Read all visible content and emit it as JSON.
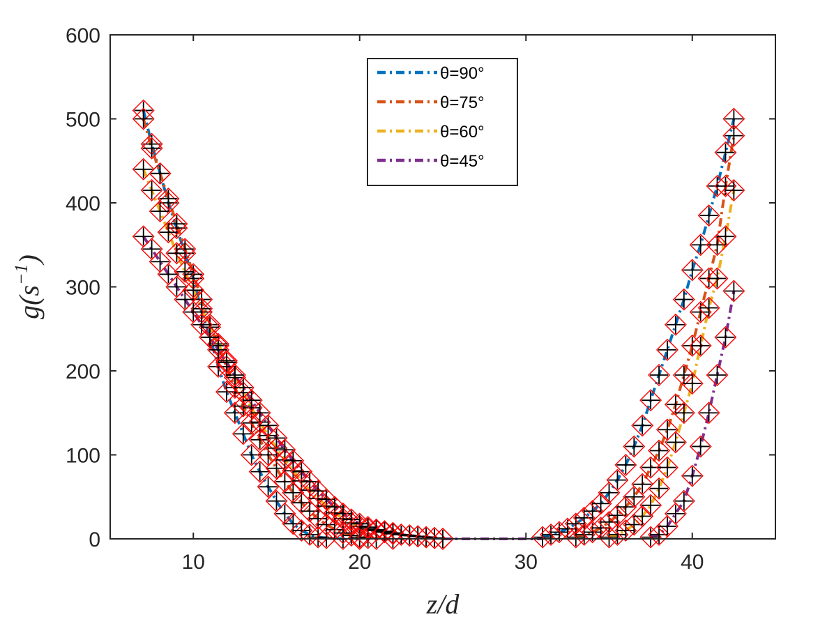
{
  "chart_data": {
    "type": "line",
    "title": "",
    "xlabel": "z/d",
    "ylabel": "g(s⁻¹)",
    "ylabel_parts": {
      "base": "g(s",
      "sup": "−1",
      "close": ")"
    },
    "xlim": [
      5,
      45
    ],
    "ylim": [
      0,
      600
    ],
    "xticks": [
      10,
      20,
      30,
      40
    ],
    "yticks": [
      0,
      100,
      200,
      300,
      400,
      500,
      600
    ],
    "grid": false,
    "legend_position": "top-center",
    "marker_styles": {
      "simulation": "red open diamond",
      "model": "black plus"
    },
    "series": [
      {
        "name": "θ=90°",
        "color": "#0072BD",
        "left": {
          "x": [
            7.0,
            7.5,
            8.0,
            8.5,
            9.0,
            9.5,
            10.0,
            10.5,
            11.0,
            11.5,
            12.0,
            12.5,
            13.0,
            13.5,
            14.0,
            14.5,
            15.0,
            15.5,
            16.0,
            16.5,
            17.0,
            17.5,
            18.0,
            19.0,
            20.0
          ],
          "y": [
            510,
            470,
            435,
            400,
            370,
            340,
            310,
            270,
            240,
            205,
            175,
            150,
            125,
            100,
            80,
            62,
            45,
            30,
            18,
            10,
            5,
            2,
            1,
            0,
            0
          ]
        },
        "right": {
          "x": [
            31.0,
            31.5,
            32.0,
            32.5,
            33.0,
            33.5,
            34.0,
            34.5,
            35.0,
            35.5,
            36.0,
            36.5,
            37.0,
            37.5,
            38.0,
            38.5,
            39.0,
            39.5,
            40.0,
            40.5,
            41.0,
            41.5,
            42.0,
            42.5
          ],
          "y": [
            2,
            5,
            8,
            12,
            18,
            25,
            33,
            42,
            55,
            70,
            88,
            110,
            135,
            165,
            195,
            225,
            255,
            285,
            320,
            350,
            385,
            420,
            460,
            500
          ]
        }
      },
      {
        "name": "θ=75°",
        "color": "#D95319",
        "left": {
          "x": [
            7.0,
            7.5,
            8.0,
            8.5,
            9.0,
            9.5,
            10.0,
            10.5,
            11.0,
            11.5,
            12.0,
            12.5,
            13.0,
            13.5,
            14.0,
            14.5,
            15.0,
            15.5,
            16.0,
            16.5,
            17.0,
            17.5,
            18.0,
            18.5,
            19.0,
            19.5,
            20.0,
            20.5,
            21.0,
            22.0
          ],
          "y": [
            500,
            465,
            435,
            405,
            375,
            345,
            315,
            285,
            255,
            230,
            205,
            180,
            158,
            138,
            118,
            100,
            84,
            68,
            55,
            43,
            33,
            24,
            17,
            11,
            7,
            4,
            2,
            1,
            0,
            0
          ]
        },
        "right": {
          "x": [
            33.0,
            33.5,
            34.0,
            34.5,
            35.0,
            35.5,
            36.0,
            36.5,
            37.0,
            37.5,
            38.0,
            38.5,
            39.0,
            39.5,
            40.0,
            40.5,
            41.0,
            41.5,
            42.0,
            42.5
          ],
          "y": [
            2,
            5,
            8,
            13,
            20,
            28,
            38,
            50,
            65,
            85,
            105,
            130,
            160,
            195,
            230,
            270,
            310,
            350,
            420,
            480
          ]
        }
      },
      {
        "name": "θ=60°",
        "color": "#EDB120",
        "left": {
          "x": [
            7.0,
            7.5,
            8.0,
            8.5,
            9.0,
            9.5,
            10.0,
            10.5,
            11.0,
            11.5,
            12.0,
            12.5,
            13.0,
            13.5,
            14.0,
            14.5,
            15.0,
            15.5,
            16.0,
            16.5,
            17.0,
            17.5,
            18.0,
            18.5,
            19.0,
            19.5,
            20.0,
            20.5,
            21.0,
            21.5,
            22.0,
            22.5,
            23.0,
            23.5,
            24.0,
            24.5,
            25.0
          ],
          "y": [
            440,
            415,
            390,
            365,
            340,
            318,
            296,
            274,
            252,
            232,
            212,
            192,
            174,
            156,
            139,
            123,
            108,
            94,
            81,
            69,
            58,
            48,
            39,
            31,
            24,
            19,
            15,
            12,
            10,
            8,
            6,
            5,
            4,
            3,
            2,
            1,
            0
          ]
        },
        "right": {
          "x": [
            35.0,
            35.5,
            36.0,
            36.5,
            37.0,
            37.5,
            38.0,
            38.5,
            39.0,
            39.5,
            40.0,
            40.5,
            41.0,
            41.5,
            42.0,
            42.5
          ],
          "y": [
            2,
            5,
            10,
            17,
            27,
            40,
            60,
            85,
            115,
            150,
            185,
            230,
            275,
            310,
            360,
            415
          ]
        }
      },
      {
        "name": "θ=45°",
        "color": "#7E2F8E",
        "left": {
          "x": [
            7.0,
            7.5,
            8.0,
            8.5,
            9.0,
            9.5,
            10.0,
            10.5,
            11.0,
            11.5,
            12.0,
            12.5,
            13.0,
            13.5,
            14.0,
            14.5,
            15.0,
            15.5,
            16.0,
            16.5,
            17.0,
            17.5,
            18.0,
            18.5,
            19.0,
            19.5,
            20.0,
            20.5,
            21.0,
            21.5,
            22.0,
            22.5,
            23.0,
            23.5,
            24.0,
            24.5,
            25.0
          ],
          "y": [
            360,
            345,
            330,
            315,
            300,
            285,
            270,
            255,
            240,
            225,
            210,
            195,
            180,
            165,
            150,
            135,
            120,
            106,
            93,
            80,
            68,
            57,
            47,
            38,
            30,
            23,
            18,
            14,
            11,
            9,
            7,
            5,
            4,
            3,
            2,
            1,
            0
          ]
        },
        "right": {
          "x": [
            37.5,
            38.0,
            38.5,
            39.0,
            39.5,
            40.0,
            40.5,
            41.0,
            41.5,
            42.0,
            42.5
          ],
          "y": [
            2,
            5,
            15,
            30,
            45,
            75,
            110,
            150,
            195,
            240,
            295
          ]
        }
      }
    ],
    "baseline_segment": {
      "x": [
        25.0,
        31.0
      ],
      "y": [
        0,
        0
      ]
    }
  }
}
